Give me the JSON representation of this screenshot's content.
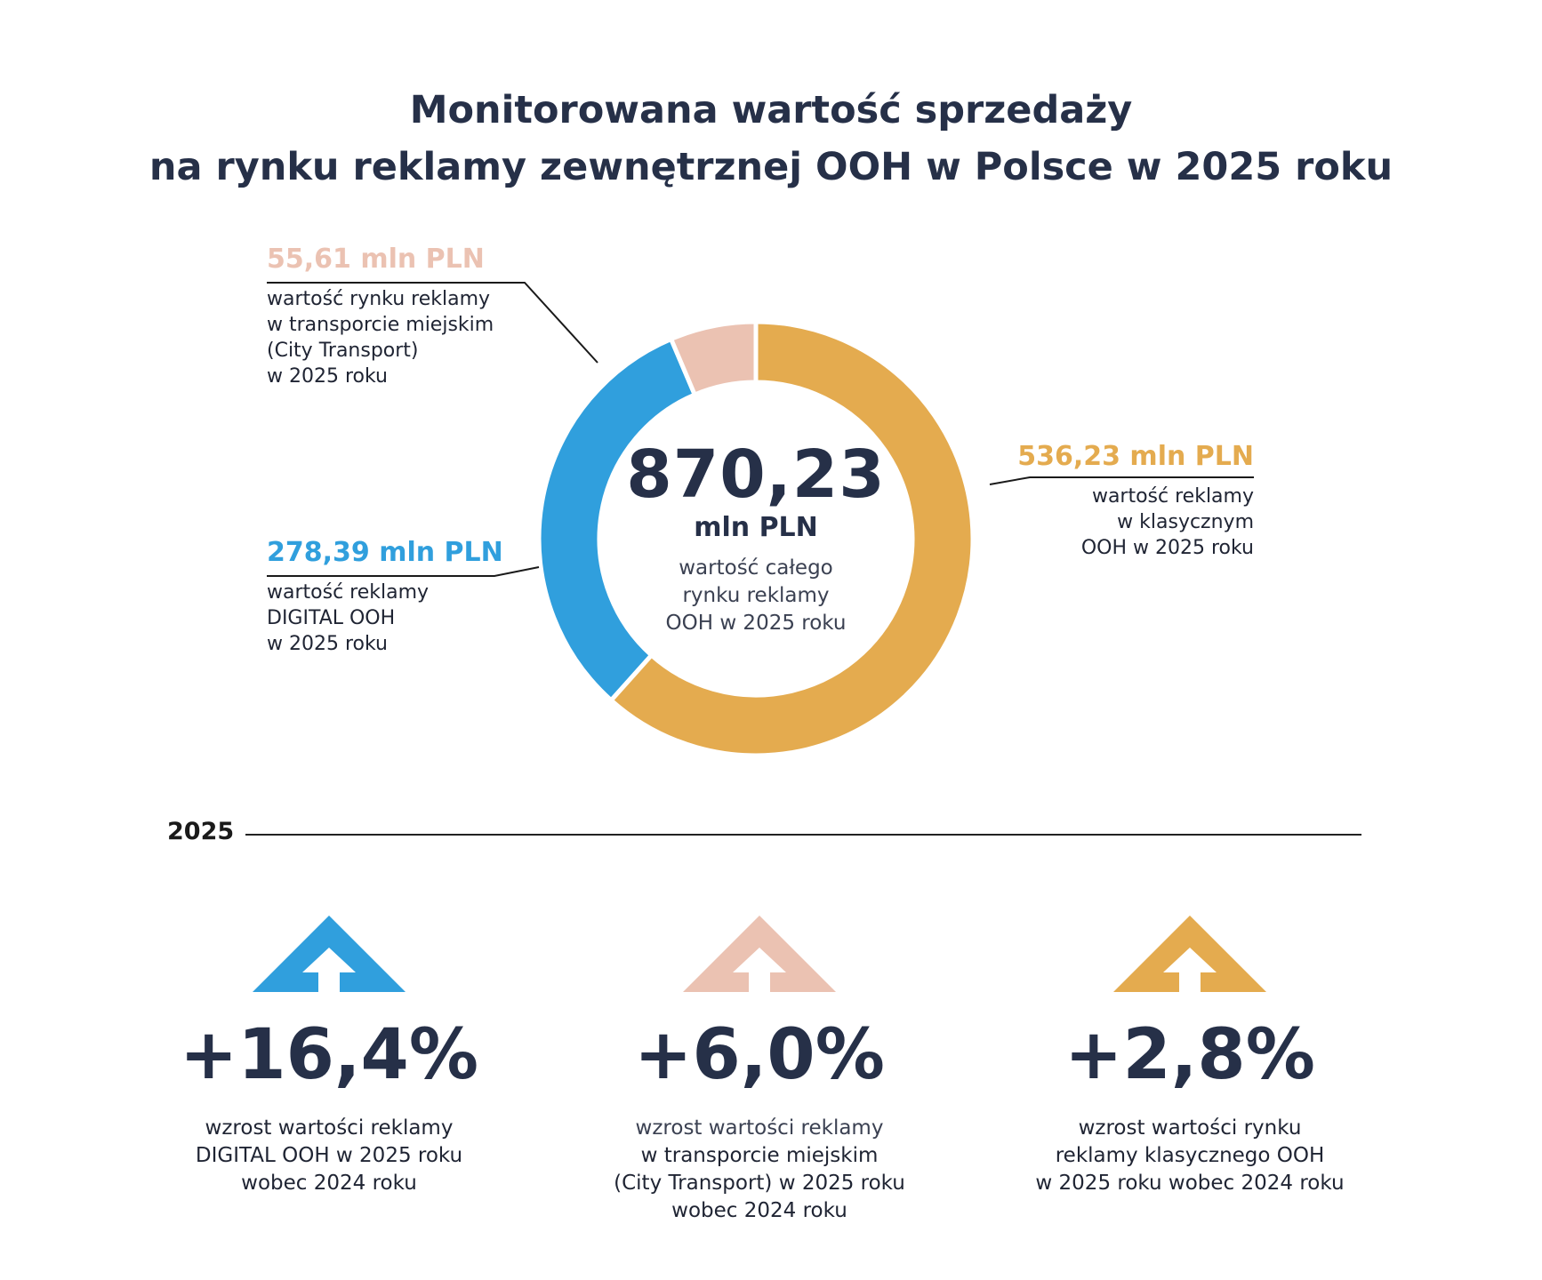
{
  "title": {
    "line1": "Monitorowana wartość sprzedaży",
    "line2": "na rynku reklamy zewnętrznej OOH w Polsce w 2025 roku"
  },
  "colors": {
    "digital": "#309fdd",
    "transport": "#ebc2b2",
    "classic": "#e4ab4f",
    "text": "#263048"
  },
  "chart_data": {
    "type": "pie",
    "unit": "mln PLN",
    "total": 870.23,
    "categories": [
      "DIGITAL OOH",
      "City Transport",
      "klasyczny OOH"
    ],
    "values": [
      278.39,
      55.61,
      536.23
    ],
    "total_label": {
      "value": "870,23",
      "unit": "mln PLN",
      "desc": [
        "wartość całego",
        "rynku reklamy",
        "OOH w 2025 roku"
      ]
    }
  },
  "callouts": {
    "transport": {
      "value": "55,61 mln PLN",
      "desc": [
        "wartość rynku reklamy",
        "w transporcie miejskim",
        "(City Transport)",
        "w 2025 roku"
      ]
    },
    "digital": {
      "value": "278,39 mln PLN",
      "desc": [
        "wartość reklamy",
        "DIGITAL OOH",
        "w 2025 roku"
      ]
    },
    "classic": {
      "value": "536,23 mln PLN",
      "desc": [
        "wartość reklamy",
        "w klasycznym",
        "OOH w 2025 roku"
      ]
    }
  },
  "section": {
    "year": "2025"
  },
  "stats": [
    {
      "value": "+16,4%",
      "color": "#309fdd",
      "icon": "arrow-up-icon",
      "desc": [
        "wzrost wartości reklamy",
        "DIGITAL OOH w 2025 roku",
        "wobec 2024 roku"
      ]
    },
    {
      "value": "+6,0%",
      "color": "#ebc2b2",
      "icon": "arrow-up-icon",
      "desc": [
        "wzrost wartości reklamy",
        "w transporcie miejskim",
        "(City Transport) w 2025 roku",
        "wobec 2024 roku"
      ]
    },
    {
      "value": "+2,8%",
      "color": "#e4ab4f",
      "icon": "arrow-up-icon",
      "desc": [
        "wzrost wartości rynku",
        "reklamy klasycznego OOH",
        "w 2025 roku wobec 2024 roku"
      ]
    }
  ]
}
